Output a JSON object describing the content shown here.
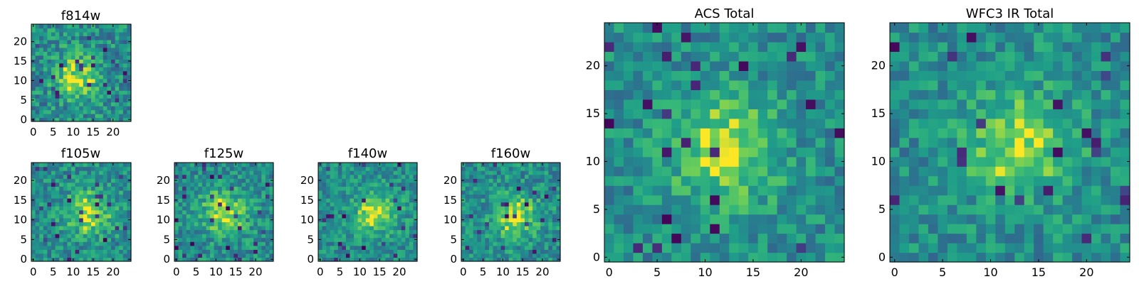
{
  "chart_data": [
    {
      "type": "heatmap",
      "title": "f814w",
      "xlabel": "",
      "ylabel": "",
      "grid": false,
      "shape": [
        25,
        25
      ],
      "xlim": [
        -0.5,
        24.5
      ],
      "ylim": [
        -0.5,
        24.5
      ],
      "xticks": [
        0,
        5,
        10,
        15,
        20
      ],
      "yticks": [
        0,
        5,
        10,
        15,
        20
      ],
      "colormap": "viridis",
      "center": [
        11,
        11
      ],
      "noise": 0.22
    },
    {
      "type": "heatmap",
      "title": "f105w",
      "xlabel": "",
      "ylabel": "",
      "grid": false,
      "shape": [
        25,
        25
      ],
      "xlim": [
        -0.5,
        24.5
      ],
      "ylim": [
        -0.5,
        24.5
      ],
      "xticks": [
        0,
        5,
        10,
        15,
        20
      ],
      "yticks": [
        0,
        5,
        10,
        15,
        20
      ],
      "colormap": "viridis",
      "center": [
        14,
        12
      ],
      "noise": 0.2
    },
    {
      "type": "heatmap",
      "title": "f125w",
      "xlabel": "",
      "ylabel": "",
      "grid": false,
      "shape": [
        25,
        25
      ],
      "xlim": [
        -0.5,
        24.5
      ],
      "ylim": [
        -0.5,
        24.5
      ],
      "xticks": [
        0,
        5,
        10,
        15,
        20
      ],
      "yticks": [
        0,
        5,
        10,
        15,
        20
      ],
      "colormap": "viridis",
      "center": [
        12,
        12
      ],
      "noise": 0.2
    },
    {
      "type": "heatmap",
      "title": "f140w",
      "xlabel": "",
      "ylabel": "",
      "grid": false,
      "shape": [
        25,
        25
      ],
      "xlim": [
        -0.5,
        24.5
      ],
      "ylim": [
        -0.5,
        24.5
      ],
      "xticks": [
        0,
        5,
        10,
        15,
        20
      ],
      "yticks": [
        0,
        5,
        10,
        15,
        20
      ],
      "colormap": "viridis",
      "center": [
        14,
        12
      ],
      "noise": 0.18
    },
    {
      "type": "heatmap",
      "title": "f160w",
      "xlabel": "",
      "ylabel": "",
      "grid": false,
      "shape": [
        25,
        25
      ],
      "xlim": [
        -0.5,
        24.5
      ],
      "ylim": [
        -0.5,
        24.5
      ],
      "xticks": [
        0,
        5,
        10,
        15,
        20
      ],
      "yticks": [
        0,
        5,
        10,
        15,
        20
      ],
      "colormap": "viridis",
      "center": [
        13,
        11
      ],
      "noise": 0.2
    },
    {
      "type": "heatmap",
      "title": "ACS Total",
      "xlabel": "",
      "ylabel": "",
      "grid": false,
      "shape": [
        25,
        25
      ],
      "xlim": [
        -0.5,
        24.5
      ],
      "ylim": [
        -0.5,
        24.5
      ],
      "xticks": [
        0,
        5,
        10,
        15,
        20
      ],
      "yticks": [
        0,
        5,
        10,
        15,
        20
      ],
      "colormap": "viridis",
      "center": [
        12,
        11
      ],
      "noise": 0.18
    },
    {
      "type": "heatmap",
      "title": "WFC3 IR Total",
      "xlabel": "",
      "ylabel": "",
      "grid": false,
      "shape": [
        25,
        25
      ],
      "xlim": [
        -0.5,
        24.5
      ],
      "ylim": [
        -0.5,
        24.5
      ],
      "xticks": [
        0,
        5,
        10,
        15,
        20
      ],
      "yticks": [
        0,
        5,
        10,
        15,
        20
      ],
      "colormap": "viridis",
      "center": [
        13,
        12
      ],
      "noise": 0.18
    }
  ],
  "colors": {
    "viridis_dark": "#440154",
    "viridis_mid": "#21918c",
    "viridis_light": "#fde725"
  }
}
